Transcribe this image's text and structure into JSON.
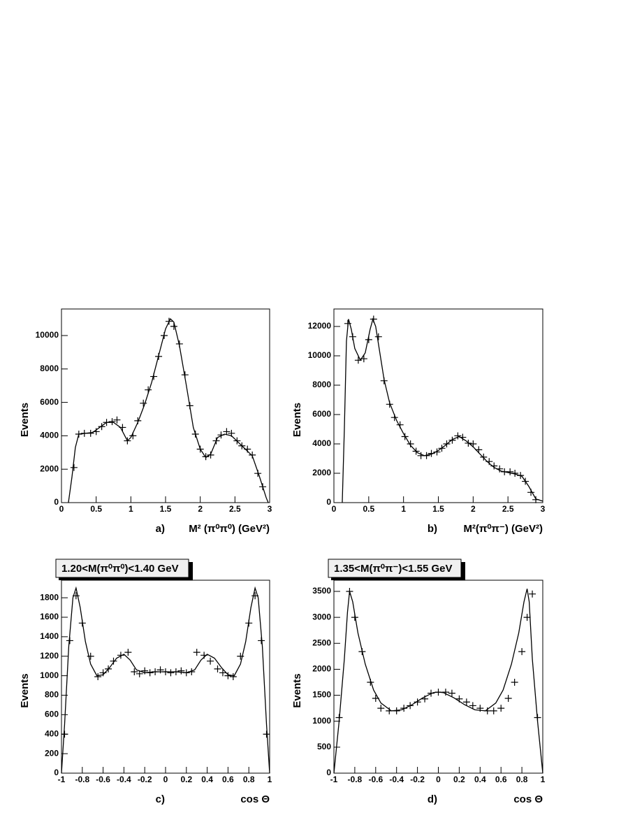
{
  "chart_data": [
    {
      "type": "scatter",
      "panel_label": "a)",
      "xlabel": "M² (π⁰π⁰) (GeV²)",
      "ylabel": "Events",
      "xlim": [
        0,
        3
      ],
      "xticks": [
        0,
        0.5,
        1,
        1.5,
        2,
        2.5,
        3
      ],
      "ylim": [
        0,
        11590
      ],
      "yticks": [
        0,
        2000,
        4000,
        6000,
        8000,
        10000
      ],
      "x": [
        0.18,
        0.25,
        0.33,
        0.42,
        0.5,
        0.58,
        0.65,
        0.73,
        0.8,
        0.88,
        0.95,
        1.03,
        1.1,
        1.18,
        1.25,
        1.33,
        1.4,
        1.48,
        1.55,
        1.62,
        1.7,
        1.78,
        1.85,
        1.93,
        2.0,
        2.08,
        2.15,
        2.23,
        2.3,
        2.38,
        2.45,
        2.53,
        2.6,
        2.68,
        2.75,
        2.83,
        2.9
      ],
      "values": [
        2100,
        4100,
        4150,
        4150,
        4250,
        4550,
        4800,
        4850,
        4950,
        4500,
        3700,
        4000,
        4900,
        5950,
        6750,
        7550,
        8750,
        10000,
        10850,
        10550,
        9500,
        7650,
        5800,
        4100,
        3200,
        2750,
        2850,
        3700,
        4050,
        4250,
        4150,
        3700,
        3400,
        3200,
        2850,
        1750,
        950
      ],
      "fit": {
        "x": [
          0.1,
          0.15,
          0.2,
          0.25,
          0.35,
          0.45,
          0.55,
          0.65,
          0.75,
          0.85,
          0.95,
          1.0,
          1.1,
          1.2,
          1.3,
          1.4,
          1.5,
          1.57,
          1.62,
          1.7,
          1.8,
          1.9,
          2.0,
          2.08,
          2.15,
          2.25,
          2.35,
          2.45,
          2.55,
          2.65,
          2.75,
          2.85,
          2.95,
          2.98
        ],
        "values": [
          0,
          1500,
          3300,
          4100,
          4150,
          4200,
          4500,
          4800,
          4800,
          4500,
          3700,
          3900,
          4800,
          5900,
          7200,
          8800,
          10400,
          11000,
          10800,
          9400,
          7000,
          4500,
          3200,
          2700,
          2900,
          3900,
          4100,
          4000,
          3600,
          3200,
          2800,
          1600,
          300,
          0
        ]
      }
    },
    {
      "type": "scatter",
      "panel_label": "b)",
      "xlabel": "M²(π⁰π⁻) (GeV²)",
      "ylabel": "Events",
      "xlim": [
        0,
        3
      ],
      "xticks": [
        0,
        0.5,
        1,
        1.5,
        2,
        2.5,
        3
      ],
      "ylim": [
        0,
        13190
      ],
      "yticks": [
        0,
        2000,
        4000,
        6000,
        8000,
        10000,
        12000
      ],
      "x": [
        0.2,
        0.27,
        0.35,
        0.43,
        0.5,
        0.57,
        0.64,
        0.72,
        0.8,
        0.87,
        0.95,
        1.02,
        1.1,
        1.18,
        1.25,
        1.33,
        1.4,
        1.48,
        1.55,
        1.62,
        1.7,
        1.78,
        1.85,
        1.93,
        2.0,
        2.08,
        2.15,
        2.23,
        2.3,
        2.38,
        2.45,
        2.53,
        2.6,
        2.68,
        2.75,
        2.83,
        2.9
      ],
      "values": [
        12200,
        11300,
        9700,
        9800,
        11100,
        12500,
        11300,
        8300,
        6700,
        5800,
        5300,
        4500,
        4000,
        3500,
        3200,
        3200,
        3350,
        3450,
        3700,
        4000,
        4250,
        4550,
        4450,
        4050,
        4000,
        3600,
        3100,
        2800,
        2500,
        2300,
        2100,
        2100,
        2000,
        1850,
        1450,
        700,
        200
      ],
      "fit": {
        "x": [
          0.12,
          0.15,
          0.18,
          0.21,
          0.25,
          0.3,
          0.38,
          0.45,
          0.52,
          0.56,
          0.6,
          0.65,
          0.72,
          0.8,
          0.9,
          1.0,
          1.1,
          1.2,
          1.3,
          1.4,
          1.5,
          1.6,
          1.7,
          1.8,
          1.9,
          2.0,
          2.1,
          2.2,
          2.3,
          2.4,
          2.5,
          2.6,
          2.7,
          2.8,
          2.9,
          3.0
        ],
        "values": [
          0,
          5000,
          11000,
          12500,
          11800,
          10500,
          9700,
          10200,
          11800,
          12500,
          12000,
          10500,
          8400,
          6800,
          5600,
          4700,
          3900,
          3400,
          3200,
          3300,
          3550,
          3900,
          4300,
          4500,
          4200,
          3800,
          3300,
          2800,
          2400,
          2150,
          2050,
          1950,
          1800,
          1100,
          250,
          100
        ]
      }
    },
    {
      "type": "scatter",
      "panel_label": "c)",
      "xlabel": "cos  Θ",
      "ylabel": "Events",
      "box_label": "1.20<M(π⁰π⁰)<1.40 GeV",
      "xlim": [
        -1,
        1
      ],
      "xticks": [
        -1,
        -0.8,
        -0.6,
        -0.4,
        -0.2,
        0,
        0.2,
        0.4,
        0.6,
        0.8,
        1
      ],
      "ylim": [
        0,
        1980
      ],
      "yticks": [
        0,
        200,
        400,
        600,
        800,
        1000,
        1200,
        1400,
        1600,
        1800
      ],
      "x": [
        -0.97,
        -0.92,
        -0.86,
        -0.8,
        -0.72,
        -0.65,
        -0.6,
        -0.55,
        -0.5,
        -0.43,
        -0.36,
        -0.3,
        -0.25,
        -0.2,
        -0.15,
        -0.1,
        -0.05,
        0,
        0.05,
        0.1,
        0.15,
        0.2,
        0.25,
        0.3,
        0.37,
        0.43,
        0.5,
        0.55,
        0.6,
        0.65,
        0.72,
        0.8,
        0.86,
        0.92,
        0.97
      ],
      "values": [
        400,
        1360,
        1820,
        1540,
        1200,
        990,
        1030,
        1070,
        1150,
        1210,
        1240,
        1040,
        1020,
        1050,
        1030,
        1040,
        1060,
        1040,
        1030,
        1040,
        1050,
        1030,
        1040,
        1240,
        1210,
        1150,
        1070,
        1030,
        1000,
        990,
        1200,
        1540,
        1820,
        1360,
        400
      ],
      "fit": {
        "x": [
          -1,
          -0.97,
          -0.93,
          -0.89,
          -0.86,
          -0.82,
          -0.77,
          -0.72,
          -0.66,
          -0.6,
          -0.54,
          -0.47,
          -0.4,
          -0.34,
          -0.28,
          -0.2,
          -0.1,
          0,
          0.1,
          0.2,
          0.28,
          0.34,
          0.4,
          0.47,
          0.54,
          0.6,
          0.66,
          0.72,
          0.77,
          0.82,
          0.86,
          0.89,
          0.93,
          0.97,
          1
        ],
        "values": [
          0,
          500,
          1300,
          1800,
          1900,
          1700,
          1350,
          1120,
          1000,
          1010,
          1080,
          1180,
          1220,
          1160,
          1060,
          1030,
          1040,
          1040,
          1040,
          1030,
          1060,
          1160,
          1220,
          1180,
          1080,
          1010,
          1000,
          1120,
          1350,
          1700,
          1900,
          1800,
          1300,
          500,
          0
        ]
      }
    },
    {
      "type": "scatter",
      "panel_label": "d)",
      "xlabel": "cos  Θ",
      "ylabel": "Events",
      "box_label": "1.35<M(π⁰π⁻)<1.55 GeV",
      "xlim": [
        -1,
        1
      ],
      "xticks": [
        -1,
        -0.8,
        -0.6,
        -0.4,
        -0.2,
        0,
        0.2,
        0.4,
        0.6,
        0.8,
        1
      ],
      "ylim": [
        0,
        3715
      ],
      "yticks": [
        0,
        500,
        1000,
        1500,
        2000,
        2500,
        3000,
        3500
      ],
      "x": [
        -0.95,
        -0.85,
        -0.8,
        -0.73,
        -0.65,
        -0.6,
        -0.55,
        -0.47,
        -0.4,
        -0.33,
        -0.27,
        -0.2,
        -0.13,
        -0.07,
        0,
        0.07,
        0.13,
        0.2,
        0.27,
        0.33,
        0.4,
        0.47,
        0.53,
        0.6,
        0.67,
        0.73,
        0.8,
        0.85,
        0.9,
        0.95
      ],
      "values": [
        1070,
        3500,
        3000,
        2340,
        1750,
        1440,
        1250,
        1200,
        1200,
        1250,
        1300,
        1370,
        1430,
        1540,
        1560,
        1560,
        1540,
        1430,
        1370,
        1300,
        1250,
        1200,
        1200,
        1250,
        1440,
        1750,
        2340,
        3000,
        3450,
        1070
      ],
      "fit": {
        "x": [
          -1,
          -0.95,
          -0.9,
          -0.87,
          -0.85,
          -0.82,
          -0.77,
          -0.7,
          -0.62,
          -0.55,
          -0.45,
          -0.35,
          -0.25,
          -0.15,
          -0.05,
          0,
          0.05,
          0.15,
          0.25,
          0.35,
          0.45,
          0.55,
          0.62,
          0.7,
          0.77,
          0.82,
          0.85,
          0.87,
          0.9,
          0.95,
          1
        ],
        "values": [
          0,
          1000,
          2200,
          3100,
          3500,
          3300,
          2700,
          2100,
          1600,
          1350,
          1200,
          1220,
          1320,
          1450,
          1550,
          1560,
          1550,
          1450,
          1320,
          1220,
          1200,
          1350,
          1600,
          2100,
          2700,
          3300,
          3550,
          3300,
          2200,
          1000,
          0
        ]
      }
    }
  ]
}
